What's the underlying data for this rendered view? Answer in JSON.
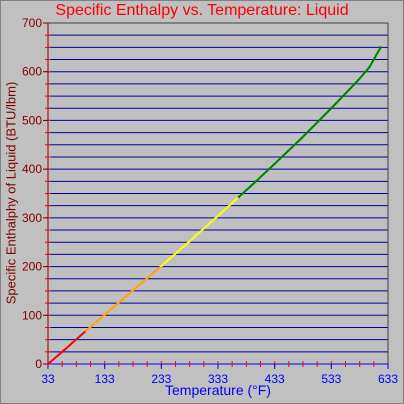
{
  "colors": {
    "background": "#c0c0c0",
    "title": "#ff0000",
    "y_axis": "#800000",
    "x_axis": "#0000ff",
    "gridline": "#0000a0",
    "tick_marks": "#ff0000"
  },
  "chart_data": {
    "type": "line",
    "title": "Specific Enthalpy vs. Temperature: Liquid",
    "xlabel": "Temperature (°F)",
    "ylabel": "Specific Enthalphy of Liquid (BTU/lbm)",
    "xlim": [
      33,
      633
    ],
    "ylim": [
      0,
      700
    ],
    "x_ticks": [
      "33",
      "133",
      "233",
      "333",
      "433",
      "533",
      "633"
    ],
    "y_ticks": [
      "0",
      "100",
      "200",
      "300",
      "400",
      "500",
      "600",
      "700"
    ],
    "grid": "horizontal",
    "series": [
      {
        "color_gradient": [
          "#ff0000",
          "#ffa500",
          "#ffff00",
          "#008000"
        ],
        "x": [
          33,
          60,
          100,
          133,
          180,
          233,
          280,
          333,
          370,
          400,
          433,
          480,
          533,
          580,
          600,
          620
        ],
        "y": [
          0,
          27,
          68,
          101,
          148,
          201,
          249,
          304,
          343,
          375,
          411,
          463,
          525,
          582,
          609,
          650
        ]
      }
    ]
  }
}
